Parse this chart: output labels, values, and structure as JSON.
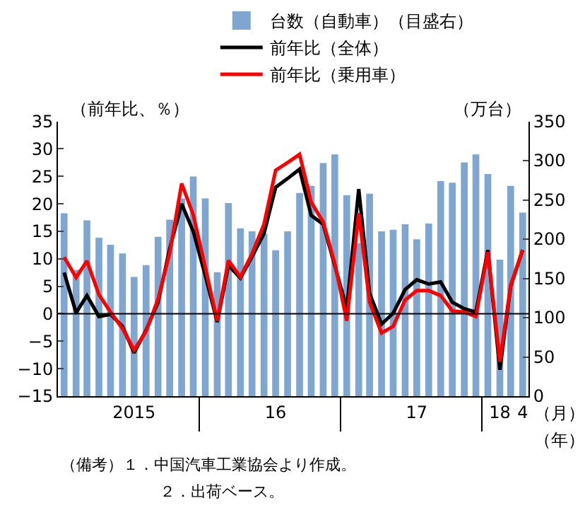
{
  "chart_data": {
    "type": "bar",
    "x": [
      "2015-01",
      "2015-02",
      "2015-03",
      "2015-04",
      "2015-05",
      "2015-06",
      "2015-07",
      "2015-08",
      "2015-09",
      "2015-10",
      "2015-11",
      "2015-12",
      "2016-01",
      "2016-02",
      "2016-03",
      "2016-04",
      "2016-05",
      "2016-06",
      "2016-07",
      "2016-08",
      "2016-09",
      "2016-10",
      "2016-11",
      "2016-12",
      "2017-01",
      "2017-02",
      "2017-03",
      "2017-04",
      "2017-05",
      "2017-06",
      "2017-07",
      "2017-08",
      "2017-09",
      "2017-10",
      "2017-11",
      "2017-12",
      "2018-01",
      "2018-02",
      "2018-03",
      "2018-04"
    ],
    "series": [
      {
        "name": "台数（自動車）（目盛右）",
        "axis": "y2",
        "color": "#7ea6d0",
        "values": [
          232,
          160,
          223,
          201,
          192,
          181,
          151,
          166,
          202,
          224,
          251,
          279,
          251,
          157,
          245,
          213,
          209,
          206,
          185,
          209,
          258,
          267,
          296,
          307,
          255,
          194,
          257,
          209,
          211,
          218,
          199,
          219,
          273,
          271,
          297,
          307,
          282,
          173,
          267,
          233
        ]
      },
      {
        "name": "前年比（全体）",
        "type": "line",
        "color": "#000000",
        "values": [
          7.5,
          0.2,
          3.3,
          -0.5,
          -0.1,
          -2.3,
          -7.1,
          -3.0,
          2.1,
          11.8,
          20.0,
          15.0,
          7.0,
          -1.5,
          8.8,
          6.5,
          10.4,
          14.6,
          23.0,
          24.6,
          26.3,
          17.9,
          16.3,
          8.8,
          0.9,
          22.7,
          3.7,
          -1.9,
          0.1,
          4.4,
          6.2,
          5.4,
          5.8,
          2.1,
          0.9,
          0.3,
          11.6,
          -10.2,
          5.0,
          11.6
        ]
      },
      {
        "name": "前年比（乗用車）",
        "type": "line",
        "color": "#ff0000",
        "values": [
          10.3,
          6.6,
          9.6,
          3.5,
          0.3,
          -2.7,
          -6.6,
          -3.2,
          2.7,
          11.0,
          23.7,
          18.0,
          8.5,
          -1.3,
          9.7,
          6.7,
          10.9,
          16.3,
          26.1,
          27.5,
          29.0,
          20.3,
          16.7,
          9.2,
          -1.3,
          18.3,
          2.1,
          -3.5,
          -2.3,
          2.5,
          4.2,
          4.2,
          3.3,
          0.5,
          0.3,
          -0.5,
          11.2,
          -8.7,
          5.2,
          11.6
        ]
      }
    ],
    "ylabel": "（前年比、％）",
    "y2label": "（万台）",
    "ylim": [
      -15,
      35
    ],
    "yticks": [
      -15,
      -10,
      -5,
      0,
      5,
      10,
      15,
      20,
      25,
      30,
      35
    ],
    "y2lim": [
      0,
      350
    ],
    "y2ticks": [
      0,
      50,
      100,
      150,
      200,
      250,
      300,
      350
    ],
    "xlim": [
      "2014-12-16",
      "2018-04-16"
    ],
    "xticks": [
      {
        "value": "2015-07-01",
        "label": "2015"
      },
      {
        "value": "2016-07-01",
        "label": "16"
      },
      {
        "value": "2017-07-01",
        "label": "17"
      },
      {
        "value": "2018-02-01",
        "label": "18"
      },
      {
        "value": "2018-04-01",
        "label": "4"
      }
    ],
    "ref_lines": [
      {
        "axis": "y",
        "value": 0,
        "color": "#000000"
      }
    ],
    "annotations": [
      "（月）",
      "（年）",
      "（備考）１．中国汽車工業協会より作成。",
      "２．出荷ベース。"
    ],
    "legend": "top",
    "marker": "none",
    "line_style": "solid"
  }
}
